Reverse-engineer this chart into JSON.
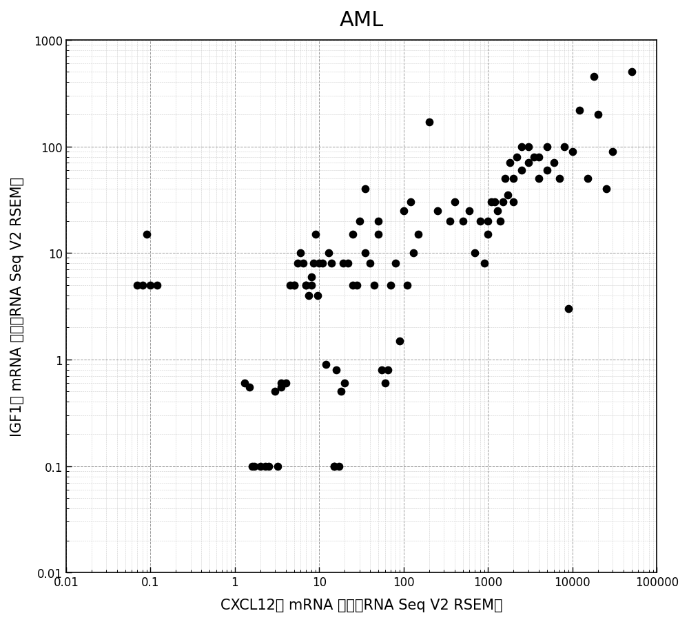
{
  "title": "AML",
  "xlabel": "CXCL12， mRNA 表达（RNA Seq V2 RSEM）",
  "ylabel": "IGF1， mRNA 表达（RNA Seq V2 RSEM）",
  "xlim": [
    0.01,
    100000
  ],
  "ylim": [
    0.01,
    1000
  ],
  "scatter_color": "#000000",
  "marker_size": 55,
  "x": [
    0.07,
    0.08,
    0.09,
    0.1,
    0.12,
    1.3,
    1.5,
    1.6,
    1.7,
    2.0,
    2.3,
    2.5,
    3.0,
    3.2,
    3.5,
    3.5,
    4.0,
    4.5,
    5.0,
    5.0,
    5.5,
    6.0,
    6.5,
    7.0,
    7.0,
    7.5,
    8.0,
    8.0,
    8.5,
    9.0,
    9.5,
    10,
    11,
    12,
    13,
    14,
    15,
    15,
    16,
    17,
    18,
    19,
    20,
    22,
    25,
    25,
    28,
    30,
    35,
    35,
    40,
    45,
    50,
    50,
    55,
    60,
    65,
    70,
    80,
    90,
    100,
    110,
    120,
    130,
    150,
    200,
    250,
    350,
    400,
    500,
    600,
    700,
    800,
    900,
    1000,
    1000,
    1100,
    1200,
    1300,
    1400,
    1500,
    1600,
    1700,
    1800,
    2000,
    2000,
    2200,
    2500,
    2500,
    3000,
    3000,
    3500,
    4000,
    4000,
    5000,
    5000,
    6000,
    7000,
    8000,
    9000,
    10000,
    12000,
    15000,
    18000,
    20000,
    25000,
    30000,
    50000
  ],
  "y": [
    5.0,
    5.0,
    15.0,
    5.0,
    5.0,
    0.6,
    0.55,
    0.1,
    0.1,
    0.1,
    0.1,
    0.1,
    0.5,
    0.1,
    0.6,
    0.55,
    0.6,
    5.0,
    5.0,
    5.0,
    8.0,
    10.0,
    8.0,
    5.0,
    5.0,
    4.0,
    5.0,
    6.0,
    8.0,
    15.0,
    4.0,
    8.0,
    8.0,
    0.9,
    10.0,
    8.0,
    0.1,
    0.1,
    0.8,
    0.1,
    0.5,
    8.0,
    0.6,
    8.0,
    5.0,
    15.0,
    5.0,
    20.0,
    10.0,
    40.0,
    8.0,
    5.0,
    15.0,
    20.0,
    0.8,
    0.6,
    0.8,
    5.0,
    8.0,
    1.5,
    25.0,
    5.0,
    30.0,
    10.0,
    15.0,
    170.0,
    25.0,
    20.0,
    30.0,
    20.0,
    25.0,
    10.0,
    20.0,
    8.0,
    15.0,
    20.0,
    30.0,
    30.0,
    25.0,
    20.0,
    30.0,
    50.0,
    35.0,
    70.0,
    30.0,
    50.0,
    80.0,
    60.0,
    100.0,
    100.0,
    70.0,
    80.0,
    50.0,
    80.0,
    100.0,
    60.0,
    70.0,
    50.0,
    100.0,
    3.0,
    90.0,
    220.0,
    50.0,
    450.0,
    200.0,
    40.0,
    90.0,
    500.0
  ],
  "background_color": "#ffffff",
  "grid_major_color": "#999999",
  "grid_minor_color": "#cccccc",
  "title_fontsize": 22,
  "label_fontsize": 15,
  "tick_fontsize": 12
}
